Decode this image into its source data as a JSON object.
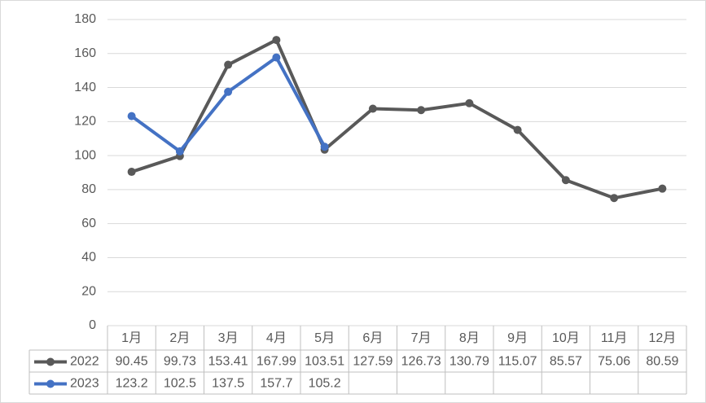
{
  "chart_data": {
    "type": "line",
    "categories": [
      "1月",
      "2月",
      "3月",
      "4月",
      "5月",
      "6月",
      "7月",
      "8月",
      "9月",
      "10月",
      "11月",
      "12月"
    ],
    "series": [
      {
        "name": "2022",
        "color": "#595959",
        "values": [
          90.45,
          99.73,
          153.41,
          167.99,
          103.51,
          127.59,
          126.73,
          130.79,
          115.07,
          85.57,
          75.06,
          80.59
        ]
      },
      {
        "name": "2023",
        "color": "#4472c4",
        "values": [
          123.2,
          102.5,
          137.5,
          157.7,
          105.2,
          null,
          null,
          null,
          null,
          null,
          null,
          null
        ]
      }
    ],
    "ylim": [
      0,
      180
    ],
    "yticks": [
      0,
      20,
      40,
      60,
      80,
      100,
      120,
      140,
      160,
      180
    ],
    "grid": true
  }
}
